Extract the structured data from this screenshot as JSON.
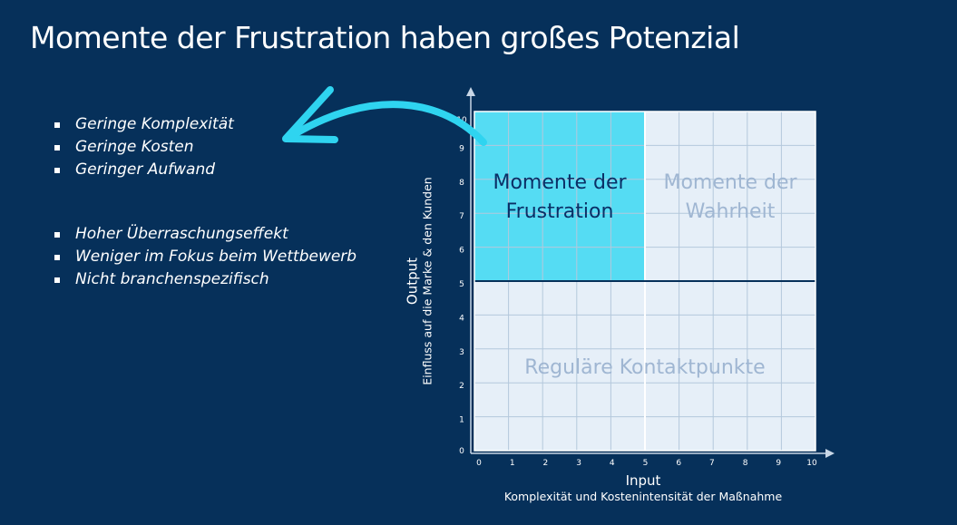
{
  "title": "Momente der Frustration haben großes Potenzial",
  "bullets_group1": [
    "Geringe Komplexität",
    "Geringe Kosten",
    "Geringer Aufwand"
  ],
  "bullets_group2": [
    "Hoher Überraschungseffekt",
    "Weniger im Fokus beim Wettbewerb",
    "Nicht branchenspezifisch"
  ],
  "matrix": {
    "quadrants": {
      "frustration": "Momente der Frustration",
      "truth": "Momente der Wahrheit",
      "regular": "Reguläre Kontaktpunkte"
    },
    "x_axis": {
      "label": "Input",
      "sublabel": "Komplexität und Kostenintensität der Maßnahme",
      "ticks": [
        "0",
        "1",
        "2",
        "3",
        "4",
        "5",
        "6",
        "7",
        "8",
        "9",
        "10"
      ]
    },
    "y_axis": {
      "label": "Output",
      "sublabel": "Einfluss auf die Marke & den Kunden",
      "ticks": [
        "0",
        "1",
        "2",
        "3",
        "4",
        "5",
        "6",
        "7",
        "8",
        "9",
        "10"
      ]
    },
    "x_range": [
      0,
      10
    ],
    "y_range": [
      0,
      10
    ],
    "split": {
      "x": 5,
      "y": 5
    },
    "highlighted_quadrant": "frustration"
  },
  "colors": {
    "background": "#06305a",
    "highlight": "#55dcf3",
    "cell": "#e6eff8",
    "grid": "#b4c8dc",
    "arrow": "#2fd4f0",
    "dark_text": "#0a2f66",
    "faded_text": "#9fb6d2"
  },
  "icons": {
    "arrow": "curved-arrow-icon",
    "bullet": "square-bullet-icon"
  }
}
